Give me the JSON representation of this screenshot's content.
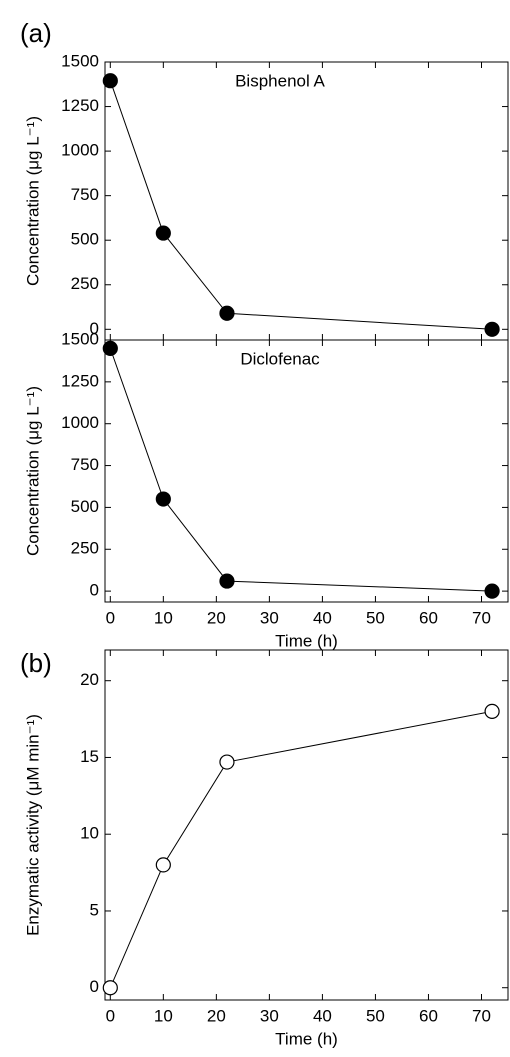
{
  "chart_data": [
    {
      "type": "line",
      "panel_label": "(a)",
      "title": "Bisphenol A",
      "ylabel": "Concentration (μg L⁻¹)",
      "x": [
        0,
        10,
        22,
        72
      ],
      "values": [
        1395,
        540,
        90,
        0
      ],
      "color": "#000000",
      "marker_fill": "#000000",
      "xlim": [
        -1,
        75
      ],
      "xticks": [
        0,
        10,
        20,
        30,
        40,
        50,
        60,
        70
      ],
      "xtick_labels": false,
      "ylim": [
        -60,
        1500
      ],
      "yticks": [
        0,
        250,
        500,
        750,
        1000,
        1250,
        1500
      ]
    },
    {
      "type": "line",
      "title": "Diclofenac",
      "ylabel": "Concentration (μg L⁻¹)",
      "xlabel": "Time (h)",
      "x": [
        0,
        10,
        22,
        72
      ],
      "values": [
        1450,
        550,
        60,
        0
      ],
      "color": "#000000",
      "marker_fill": "#000000",
      "xlim": [
        -1,
        75
      ],
      "xticks": [
        0,
        10,
        20,
        30,
        40,
        50,
        60,
        70
      ],
      "xtick_labels": true,
      "ylim": [
        -65,
        1500
      ],
      "yticks": [
        0,
        250,
        500,
        750,
        1000,
        1250,
        1500
      ]
    },
    {
      "type": "line",
      "panel_label": "(b)",
      "ylabel": "Enzymatic activity (μM min⁻¹)",
      "xlabel": "Time (h)",
      "x": [
        0,
        10,
        22,
        72
      ],
      "values": [
        0,
        8,
        14.7,
        18
      ],
      "color": "#000000",
      "marker_fill": "#ffffff",
      "xlim": [
        -1,
        75
      ],
      "xticks": [
        0,
        10,
        20,
        30,
        40,
        50,
        60,
        70
      ],
      "xtick_labels": true,
      "ylim": [
        -0.8,
        22
      ],
      "yticks": [
        0,
        5,
        10,
        15,
        20
      ]
    }
  ]
}
